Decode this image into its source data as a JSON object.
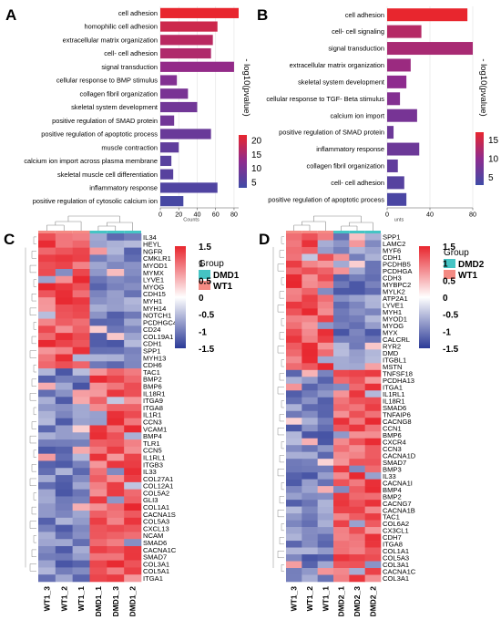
{
  "chart_data": [
    {
      "panel": "A",
      "type": "bar",
      "orientation": "horizontal",
      "categories": [
        "cell adhesion",
        "homophilic cell adhesion",
        "extracellular matrix organization",
        "cell- cell adhesion",
        "signal transduction",
        "cellular response to BMP stimulus",
        "collagen fibril organization",
        "skeletal system development",
        "positive regulation of SMAD protein",
        "positive regulation of apoptotic process",
        "muscle contraction",
        "calcium ion import across plasma membrane",
        "skeletal muscle cell differentiation",
        "inflammatory response",
        "positive regulation of cytosolic calcium ion"
      ],
      "values": [
        85,
        62,
        57,
        55,
        80,
        18,
        30,
        40,
        15,
        55,
        20,
        12,
        14,
        62,
        25
      ],
      "color_values": [
        22,
        19,
        17,
        16,
        13,
        11,
        10,
        9,
        9,
        8,
        7,
        6,
        6,
        5,
        4
      ],
      "xlabel": "Counts",
      "ylabel": "",
      "xticks": [
        0,
        20,
        40,
        60,
        80
      ],
      "xlim": [
        0,
        85
      ],
      "legend_title": "- log10(pvalue)",
      "legend_ticks": [
        20,
        15,
        10,
        5
      ],
      "color_range": [
        3,
        22
      ]
    },
    {
      "panel": "B",
      "type": "bar",
      "orientation": "horizontal",
      "categories": [
        "cell adhesion",
        "cell- cell signaling",
        "signal transduction",
        "extracellular matrix organization",
        "skeletal system development",
        "cellular response to TGF- Beta stimulus",
        "calcium ion import",
        "positive regulation of SMAD protein",
        "inflammatory response",
        "collagen fibril organization",
        "cell- cell adhesion",
        "positive regulation of apoptotic process"
      ],
      "values": [
        75,
        32,
        80,
        22,
        18,
        12,
        28,
        6,
        30,
        10,
        16,
        18
      ],
      "color_values": [
        17,
        13,
        12,
        11,
        10,
        9,
        8,
        7,
        7,
        6,
        5,
        4
      ],
      "xlabel": "unts",
      "ylabel": "",
      "xticks": [
        0,
        40,
        80
      ],
      "xlim": [
        0,
        80
      ],
      "legend_title": "- log10(pvalue)",
      "legend_ticks": [
        15,
        10,
        5
      ],
      "color_range": [
        3,
        17
      ]
    },
    {
      "panel": "C",
      "type": "heatmap",
      "columns": [
        "WT1_3",
        "WT1_2",
        "WT1_1",
        "DMD1_1",
        "DMD1_3",
        "DMD1_2"
      ],
      "rows": [
        "IL34",
        "HEYL",
        "NGFR",
        "CMKLR1",
        "MYOD1",
        "MYMX",
        "LYVE1",
        "MYOG",
        "CDH15",
        "MYH1",
        "MYH14",
        "NOTCH1",
        "PCDHGC4",
        "CD24",
        "COL19A1",
        "CDH1",
        "SPP1",
        "MYH13",
        "CDH6",
        "TAC1",
        "BMP2",
        "BMP6",
        "IL18R1",
        "ITGA9",
        "ITGA8",
        "IL1R1",
        "CCN3",
        "VCAM1",
        "BMP4",
        "TLR1",
        "CCN5",
        "IL1RL1",
        "ITGB3",
        "IL33",
        "COL27A1",
        "COL12A1",
        "COL5A2",
        "GLI3",
        "COL1A1",
        "CACNA1S",
        "COL5A3",
        "CXCL13",
        "NCAM",
        "SMAD6",
        "CACNA1C",
        "SMAD7",
        "COL3A1",
        "COL5A1",
        "ITGA1"
      ],
      "legend_title": "Group",
      "legend_groups": [
        "DMD1",
        "WT1"
      ],
      "color_scale_ticks": [
        "1.5",
        "1",
        "0.5",
        "0",
        "-0.5",
        "-1",
        "-1.5"
      ],
      "value_range": [
        -1.5,
        1.5
      ],
      "n_up_in_wt": 19
    },
    {
      "panel": "D",
      "type": "heatmap",
      "columns": [
        "WT1_3",
        "WT1_2",
        "WT1_1",
        "DMD2_1",
        "DMD2_3",
        "DMD2_2"
      ],
      "rows": [
        "SPP1",
        "LAMC2",
        "MYF6",
        "CDH1",
        "PCDHB5",
        "PCDHGA",
        "CDH3",
        "MYBPC2",
        "MYLK2",
        "ATP2A1",
        "LYVE1",
        "MYH1",
        "MYOD1",
        "MYOG",
        "MYX",
        "CALCRL",
        "RYR2",
        "DMD",
        "ITGBL1",
        "MSTN",
        "TNFSF18",
        "PCDHA13",
        "ITGA1",
        "IL1RL1",
        "IL18R1",
        "SMAD6",
        "TNFAIP6",
        "CACNG8",
        "CCN1",
        "BMP6",
        "CXCR4",
        "CCN3",
        "CACNA1D",
        "SMAD7",
        "BMP3",
        "IL33",
        "CACNA1I",
        "BMP4",
        "BMP2",
        "CACNG7",
        "CACNA1B",
        "TAC1",
        "COL6A2",
        "CX3CL1",
        "CDH7",
        "ITGA8",
        "COL1A1",
        "COL5A3",
        "COL3A1",
        "CACNA1C",
        "COL3A1"
      ],
      "legend_title": "Group",
      "legend_groups": [
        "DMD2",
        "WT1"
      ],
      "color_scale_ticks": [
        "1.5",
        "1",
        "0.5",
        "0",
        "-0.5",
        "-1",
        "-1.5"
      ],
      "value_range": [
        -1.5,
        1.5
      ],
      "n_up_in_wt": 20
    }
  ],
  "colors": {
    "bar_high": "#e8262e",
    "bar_mid": "#8e2b8e",
    "bar_low": "#3f4ba6",
    "heat_high": "#e8262e",
    "heat_mid": "#ffffff",
    "heat_low": "#2b3a97",
    "group_dmd": "#45c4c4",
    "group_wt": "#f48a83"
  }
}
